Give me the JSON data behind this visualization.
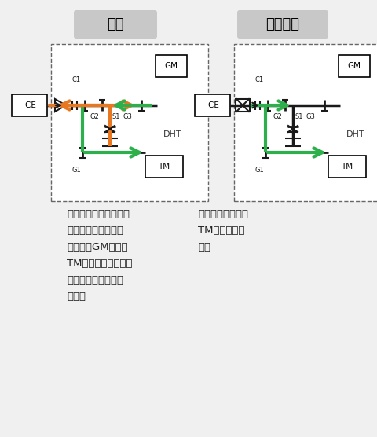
{
  "bg_color": "#f0f0f0",
  "title1": "并联",
  "title2": "能量回收",
  "title_bg": "#c8c8c8",
  "text1": "适用于高速行驶工况，\n由发动机驱动直接驱\n动车轮，GM电机和\nTM电机负责调节发动\n机工作点和辅助驱动\n车轮。",
  "text2": "适用于制动工况，\nTM电机能量回\n收。",
  "green": "#2db04b",
  "orange": "#e87722",
  "black": "#1a1a1a",
  "gray": "#888888",
  "label_ICE": "ICE",
  "label_GM": "GM",
  "label_TM": "TM",
  "label_DHT": "DHT",
  "label_C1": "C1",
  "label_G1": "G1",
  "label_G2": "G2",
  "label_G3": "G3",
  "label_S1": "S1"
}
